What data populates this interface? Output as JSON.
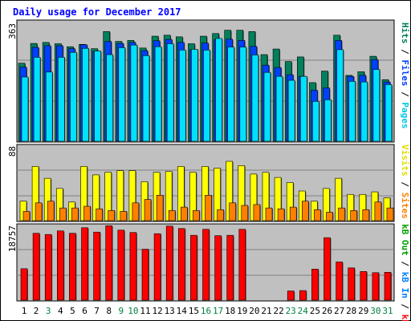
{
  "chart_data": [
    {
      "type": "bar",
      "title": "Daily usage for December 2017",
      "categories": [
        "1",
        "2",
        "3",
        "4",
        "5",
        "6",
        "7",
        "8",
        "9",
        "10",
        "11",
        "12",
        "13",
        "14",
        "15",
        "16",
        "17",
        "18",
        "19",
        "20",
        "21",
        "22",
        "23",
        "24",
        "25",
        "26",
        "27",
        "28",
        "29",
        "30",
        "31"
      ],
      "weekend_categories": [
        "3",
        "9",
        "10",
        "16",
        "17",
        "23",
        "24",
        "30",
        "31"
      ],
      "ymax_label": "363",
      "ylim": [
        0,
        363
      ],
      "legend": {
        "pages": "Pages",
        "files": "Files",
        "hits": "Hits",
        "sep1": " / ",
        "sep2": " / "
      },
      "series": [
        {
          "name": "Hits",
          "color": "#00805c",
          "values": [
            237,
            297,
            300,
            296,
            287,
            294,
            281,
            333,
            303,
            306,
            283,
            319,
            322,
            317,
            296,
            319,
            327,
            337,
            337,
            333,
            263,
            280,
            242,
            256,
            178,
            213,
            322,
            200,
            211,
            258,
            187
          ]
        },
        {
          "name": "Files",
          "color": "#0040ff",
          "values": [
            225,
            285,
            290,
            290,
            281,
            293,
            273,
            303,
            297,
            300,
            275,
            305,
            309,
            300,
            278,
            298,
            308,
            310,
            306,
            288,
            231,
            224,
            202,
            197,
            155,
            162,
            306,
            197,
            200,
            248,
            180
          ]
        },
        {
          "name": "Pages",
          "color": "#00e0ff",
          "values": [
            195,
            255,
            210,
            255,
            270,
            282,
            274,
            263,
            284,
            292,
            260,
            287,
            296,
            277,
            279,
            277,
            312,
            286,
            286,
            262,
            209,
            197,
            185,
            197,
            121,
            126,
            278,
            182,
            180,
            218,
            172
          ]
        }
      ]
    },
    {
      "type": "bar",
      "ymax_label": "88",
      "ylim": [
        0,
        88
      ],
      "legend": {
        "visits": "Visits",
        "sites": "Sites",
        "sep1": " / "
      },
      "series": [
        {
          "name": "Visits",
          "color": "#ffff00",
          "values": [
            23,
            64,
            50,
            38,
            22,
            64,
            54,
            57,
            59,
            59,
            46,
            57,
            58,
            64,
            57,
            64,
            62,
            70,
            65,
            55,
            57,
            51,
            45,
            35,
            23,
            38,
            50,
            31,
            31,
            34,
            27
          ]
        },
        {
          "name": "Sites",
          "color": "#ff8000",
          "values": [
            11,
            21,
            23,
            15,
            15,
            17,
            14,
            12,
            11,
            21,
            25,
            30,
            12,
            16,
            12,
            30,
            13,
            21,
            18,
            19,
            15,
            14,
            16,
            23,
            13,
            10,
            15,
            12,
            13,
            22,
            15
          ]
        }
      ]
    },
    {
      "type": "bar",
      "ymax_label": "18757",
      "ylim": [
        0,
        18757
      ],
      "legend": {
        "kb_f": "kB F",
        "kb_in": "kB In",
        "kb_out": "kB Out",
        "sep1": " / ",
        "sep2": " / "
      },
      "series": [
        {
          "name": "kB F",
          "color": "#ff0000",
          "values": [
            7900,
            16800,
            16500,
            17400,
            16800,
            18200,
            17100,
            18700,
            17600,
            17000,
            12800,
            16700,
            18600,
            18000,
            16300,
            17800,
            16200,
            16300,
            17800,
            0,
            0,
            0,
            2300,
            2400,
            7800,
            15700,
            9600,
            8100,
            7200,
            6900,
            7000
          ]
        }
      ]
    }
  ]
}
